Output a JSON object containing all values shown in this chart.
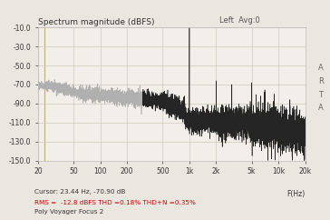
{
  "title": "Spectrum magnitude (dBFS)",
  "top_right_label": "Left  Avg:0",
  "right_label": "A\nR\nT\nA",
  "xlabel": "F(Hz)",
  "cursor_label": "Cursor: 23.44 Hz, -70.90 dB",
  "rms_label": "RMS =  -12.8 dBFS THD =0.18% THD+N =0.35%",
  "device_label": "Poly Voyager Focus 2",
  "ylim": [
    -150,
    -10
  ],
  "yticks": [
    -150,
    -130,
    -110,
    -90,
    -70,
    -50,
    -30,
    -10
  ],
  "ytick_labels": [
    "-150.0",
    "-130.0",
    "-110.0",
    "-90.0",
    "-70.0",
    "-50.0",
    "-30.0",
    "-10.0"
  ],
  "xlim_log": [
    20,
    20000
  ],
  "xtick_vals": [
    20,
    50,
    100,
    200,
    500,
    1000,
    2000,
    5000,
    10000,
    20000
  ],
  "xtick_labels": [
    "20",
    "50",
    "100",
    "200",
    "500",
    "1k",
    "2k",
    "5k",
    "10k",
    "20k"
  ],
  "bg_color": "#eae7e0",
  "plot_bg_color": "#f2efea",
  "grid_color": "#c8c0b0",
  "line_color_low": "#aaaaaa",
  "line_color_high": "#1a1a1a",
  "rms_label_color": "#cc0000",
  "cursor_label_color": "#333333",
  "device_label_color": "#333333",
  "cursor_x": 23.44,
  "cursor_color": "#c8b800",
  "spike_1k_db": -12.5,
  "harmonics": [
    [
      2000,
      -78
    ],
    [
      3000,
      -82
    ],
    [
      5000,
      -80
    ],
    [
      7000,
      -90
    ],
    [
      9000,
      -92
    ]
  ],
  "seed": 12
}
